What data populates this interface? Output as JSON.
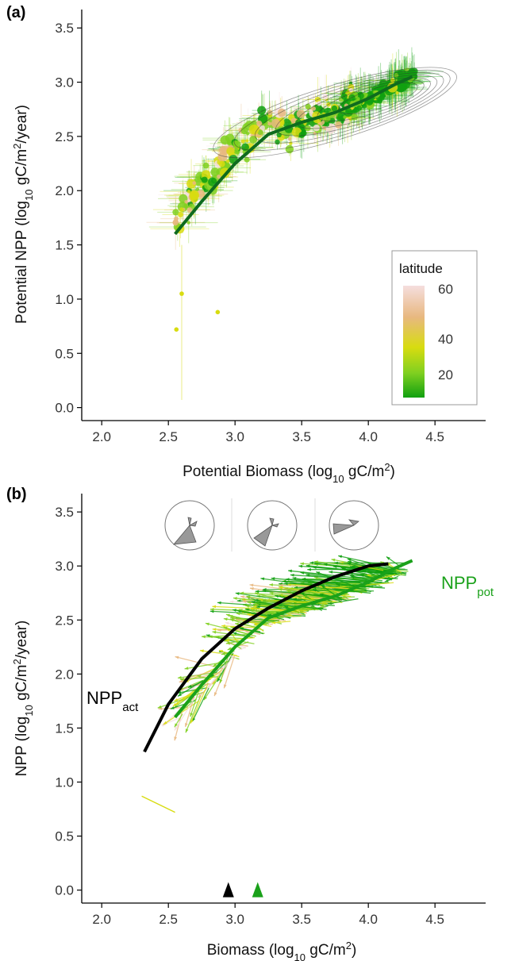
{
  "chart_data": [
    {
      "panel": "(a)",
      "type": "scatter",
      "xlabel": "Potential Biomass (log10 gC/m2)",
      "ylabel": "Potential NPP (log10 gC/m2/year)",
      "xlabel_parts": {
        "main": "Potential Biomass (log",
        "sub": "10",
        "mid": " gC/m",
        "sup": "2",
        "end": ")"
      },
      "ylabel_parts": {
        "main": "Potential NPP (log",
        "sub": "10",
        "mid": " gC/m",
        "sup": "2",
        "end": "/year)"
      },
      "xlim": [
        1.85,
        4.88
      ],
      "ylim": [
        -0.12,
        3.67
      ],
      "xticks": [
        "2.0",
        "2.5",
        "3.0",
        "3.5",
        "4.0",
        "4.5"
      ],
      "yticks": [
        "0.0",
        "0.5",
        "1.0",
        "1.5",
        "2.0",
        "2.5",
        "3.0",
        "3.5"
      ],
      "grid": false,
      "legend": {
        "title": "latitude",
        "position": "bottom-right",
        "labels": [
          "60",
          "40",
          "20"
        ],
        "colors": [
          "#F5DEDE",
          "#E8B880",
          "#D8DC10",
          "#80D020",
          "#10A010"
        ]
      },
      "points_summary": "several hundred site points with horizontal/vertical error bars, coloured by latitude, concentrated from biomass 2.5-4.4 and NPP 1.5-3.1",
      "fit_curve": {
        "color": "#0E6B1E",
        "x": [
          2.55,
          2.75,
          3.0,
          3.25,
          3.5,
          3.75,
          4.0,
          4.2,
          4.33
        ],
        "y": [
          1.6,
          1.9,
          2.25,
          2.52,
          2.63,
          2.72,
          2.85,
          2.98,
          3.05
        ]
      },
      "density_contours": true
    },
    {
      "panel": "(b)",
      "type": "scatter",
      "xlabel": "Biomass (log10 gC/m2)",
      "ylabel": "NPP (log10 gC/m2/year)",
      "xlabel_parts": {
        "main": "Biomass (log",
        "sub": "10",
        "mid": " gC/m",
        "sup": "2",
        "end": ")"
      },
      "ylabel_parts": {
        "main": "NPP (log",
        "sub": "10",
        "mid": " gC/m",
        "sup": "2",
        "end": "/year)"
      },
      "xlim": [
        1.85,
        4.88
      ],
      "ylim": [
        -0.12,
        3.67
      ],
      "xticks": [
        "2.0",
        "2.5",
        "3.0",
        "3.5",
        "4.0",
        "4.5"
      ],
      "yticks": [
        "0.0",
        "0.5",
        "1.0",
        "1.5",
        "2.0",
        "2.5",
        "3.0",
        "3.5"
      ],
      "grid": false,
      "series": [
        {
          "name": "NPP_act",
          "label_main": "NPP",
          "label_sub": "act",
          "color": "#000000",
          "x": [
            2.32,
            2.5,
            2.75,
            3.0,
            3.25,
            3.5,
            3.75,
            4.0,
            4.15
          ],
          "y": [
            1.28,
            1.72,
            2.14,
            2.42,
            2.61,
            2.77,
            2.9,
            3.0,
            3.02
          ]
        },
        {
          "name": "NPP_pot",
          "label_main": "NPP",
          "label_sub": "pot",
          "color": "#1AA11A",
          "x": [
            2.55,
            2.75,
            3.0,
            3.25,
            3.5,
            3.75,
            4.0,
            4.2,
            4.33
          ],
          "y": [
            1.6,
            1.9,
            2.25,
            2.52,
            2.63,
            2.72,
            2.85,
            2.98,
            3.05
          ]
        }
      ],
      "arrows_summary": "per-site arrows from potential to actual (biomass, NPP), coloured by latitude",
      "median_markers": [
        {
          "x": 2.95,
          "color": "#000000"
        },
        {
          "x": 3.17,
          "color": "#1AA11A"
        }
      ],
      "rose_insets": 3
    }
  ]
}
